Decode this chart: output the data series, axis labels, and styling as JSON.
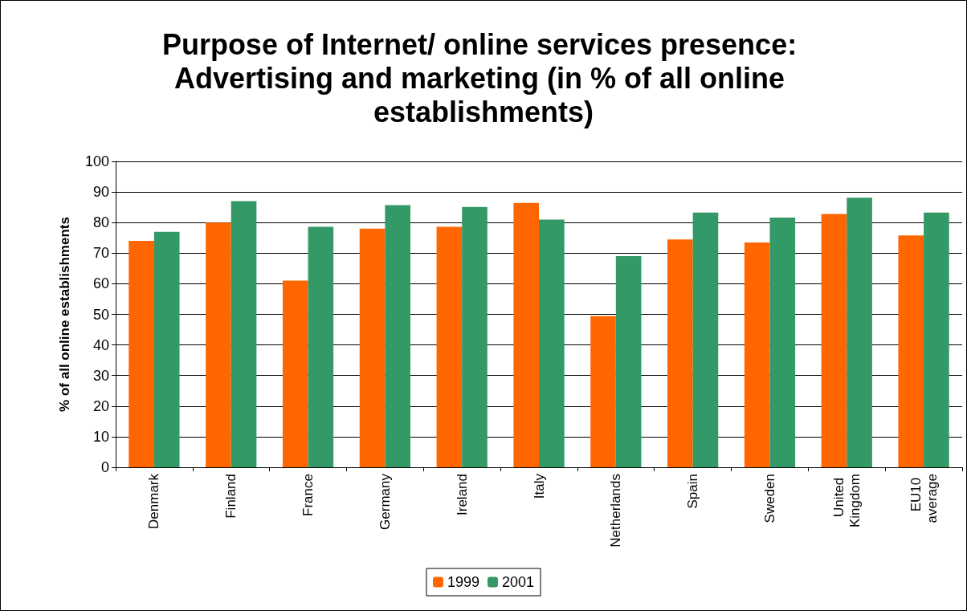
{
  "chart_data": {
    "type": "bar",
    "title": "Purpose of Internet/ online services presence: Advertising and marketing (in % of all online establishments)",
    "ylabel": "% of all online establishments",
    "categories": [
      "Denmark",
      "Finland",
      "France",
      "Germany",
      "Ireland",
      "Italy",
      "Netherlands",
      "Spain",
      "Sweden",
      "United Kingdom",
      "EU10 average"
    ],
    "series": [
      {
        "name": "1999",
        "color": "#ff6600",
        "values": [
          74,
          80,
          61,
          78,
          78.6,
          86.4,
          49.4,
          74.5,
          73.5,
          82.8,
          75.8
        ]
      },
      {
        "name": "2001",
        "color": "#339966",
        "values": [
          77,
          87,
          78.6,
          85.7,
          85.1,
          81,
          69,
          83.3,
          81.6,
          88.1,
          83.3
        ]
      }
    ],
    "ylim": [
      0,
      100
    ],
    "yticks": [
      0,
      10,
      20,
      30,
      40,
      50,
      60,
      70,
      80,
      90,
      100
    ],
    "grid": "y",
    "legend": "bottom"
  }
}
